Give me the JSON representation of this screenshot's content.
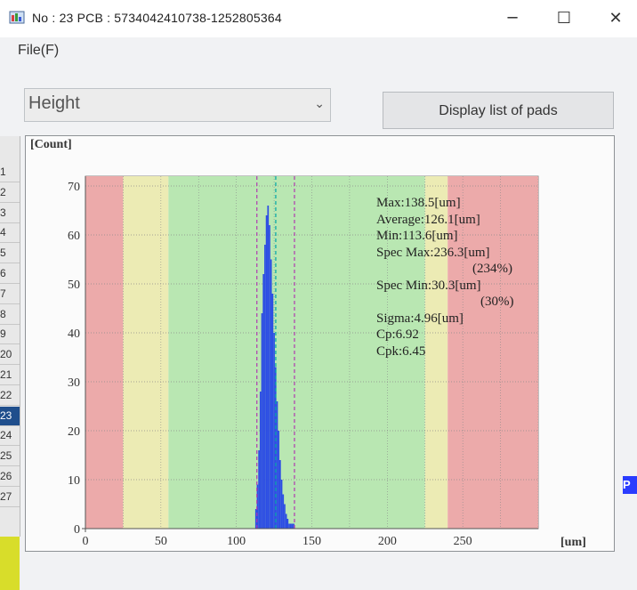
{
  "window": {
    "title": "No : 23   PCB : 5734042410738-1252805364",
    "minimize": "─",
    "maximize": "☐",
    "close": "✕"
  },
  "menu": {
    "file": "File(F)"
  },
  "dropdown": {
    "value": "Height",
    "arrow": "⌄"
  },
  "button": {
    "label": "Display list of pads"
  },
  "row_list": {
    "labels": [
      "1",
      "2",
      "3",
      "4",
      "5",
      "6",
      "7",
      "8",
      "9",
      "20",
      "21",
      "22",
      "23",
      "24",
      "25",
      "26",
      "27"
    ],
    "selected": "23"
  },
  "right_edge_text": "P",
  "histogram": {
    "y_unit": "[Count]",
    "x_unit": "[um]",
    "stats": {
      "max": "Max:138.5[um]",
      "average": "Average:126.1[um]",
      "min": "Min:113.6[um]",
      "spec_max": "Spec Max:236.3[um]",
      "spec_max_pct": "(234%)",
      "spec_min": "Spec Min:30.3[um]",
      "spec_min_pct": "(30%)",
      "sigma": "Sigma:4.96[um]",
      "cp": "Cp:6.92",
      "cpk": "Cpk:6.45"
    }
  },
  "chart_data": {
    "type": "bar",
    "x_tick_labels": [
      "0",
      "50",
      "100",
      "150",
      "200",
      "250"
    ],
    "y_tick_labels": [
      "0",
      "10",
      "20",
      "30",
      "40",
      "50",
      "60",
      "70"
    ],
    "xlim": [
      0,
      300
    ],
    "ylim": [
      0,
      72
    ],
    "bins_x": [
      113,
      114,
      115,
      116,
      117,
      118,
      119,
      120,
      121,
      122,
      123,
      124,
      125,
      126,
      127,
      128,
      129,
      130,
      131,
      132,
      133,
      134,
      135,
      136,
      137,
      138
    ],
    "counts": [
      4,
      9,
      16,
      28,
      44,
      52,
      58,
      64,
      66,
      62,
      55,
      48,
      40,
      33,
      26,
      20,
      14,
      10,
      7,
      5,
      3,
      2,
      1,
      1,
      1,
      1
    ],
    "bands": [
      {
        "from": 0,
        "to": 25,
        "color": "#ecaaaa"
      },
      {
        "from": 25,
        "to": 55,
        "color": "#ecebb4"
      },
      {
        "from": 55,
        "to": 225,
        "color": "#b9e7b2"
      },
      {
        "from": 225,
        "to": 240,
        "color": "#ecebb4"
      },
      {
        "from": 240,
        "to": 300,
        "color": "#ecaaaa"
      }
    ],
    "bar_color": "#2c4de4",
    "limit_lines": [
      {
        "x": 113.6,
        "color": "#b03ab0"
      },
      {
        "x": 126.1,
        "color": "#00a6a6"
      },
      {
        "x": 138.5,
        "color": "#b03ab0"
      }
    ]
  }
}
